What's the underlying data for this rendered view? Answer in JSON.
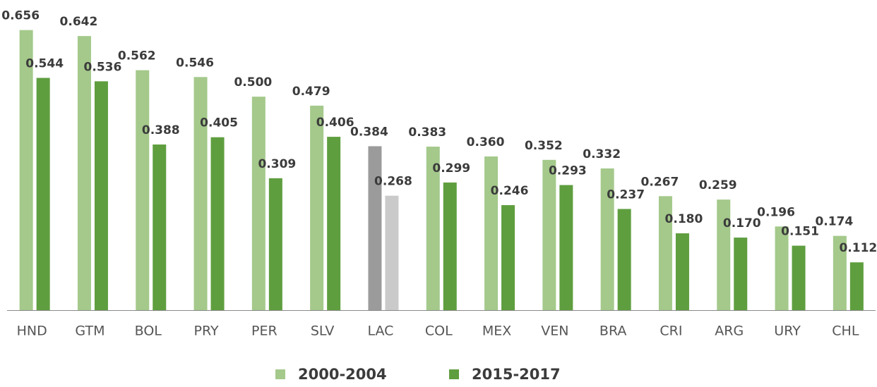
{
  "chart_data": {
    "type": "bar",
    "categories": [
      "HND",
      "GTM",
      "BOL",
      "PRY",
      "PER",
      "SLV",
      "LAC",
      "COL",
      "MEX",
      "VEN",
      "BRA",
      "CRI",
      "ARG",
      "URY",
      "CHL"
    ],
    "series": [
      {
        "name": "2000-2004",
        "color": "#a4c98b",
        "colors": [
          "#a4c98b",
          "#a4c98b",
          "#a4c98b",
          "#a4c98b",
          "#a4c98b",
          "#a4c98b",
          "#9b9b9b",
          "#a4c98b",
          "#a4c98b",
          "#a4c98b",
          "#a4c98b",
          "#a4c98b",
          "#a4c98b",
          "#a4c98b",
          "#a4c98b"
        ],
        "values": [
          0.656,
          0.642,
          0.562,
          0.546,
          0.5,
          0.479,
          0.384,
          0.383,
          0.36,
          0.352,
          0.332,
          0.267,
          0.259,
          0.196,
          0.174
        ],
        "value_labels": [
          "0.656",
          "0.642",
          "0.562",
          "0.546",
          "0.500",
          "0.479",
          "0.384",
          "0.383",
          "0.360",
          "0.352",
          "0.332",
          "0.267",
          "0.259",
          "0.196",
          "0.174"
        ]
      },
      {
        "name": "2015-2017",
        "color": "#5f9e3f",
        "colors": [
          "#5f9e3f",
          "#5f9e3f",
          "#5f9e3f",
          "#5f9e3f",
          "#5f9e3f",
          "#5f9e3f",
          "#cacaca",
          "#5f9e3f",
          "#5f9e3f",
          "#5f9e3f",
          "#5f9e3f",
          "#5f9e3f",
          "#5f9e3f",
          "#5f9e3f",
          "#5f9e3f"
        ],
        "values": [
          0.544,
          0.536,
          0.388,
          0.405,
          0.309,
          0.406,
          0.268,
          0.299,
          0.246,
          0.293,
          0.237,
          0.18,
          0.17,
          0.151,
          0.112
        ],
        "value_labels": [
          "0.544",
          "0.536",
          "0.388",
          "0.405",
          "0.309",
          "0.406",
          "0.268",
          "0.299",
          "0.246",
          "0.293",
          "0.237",
          "0.180",
          "0.170",
          "0.151",
          "0.112"
        ]
      }
    ],
    "ylim": [
      0,
      0.7
    ],
    "legend": "bottom"
  }
}
